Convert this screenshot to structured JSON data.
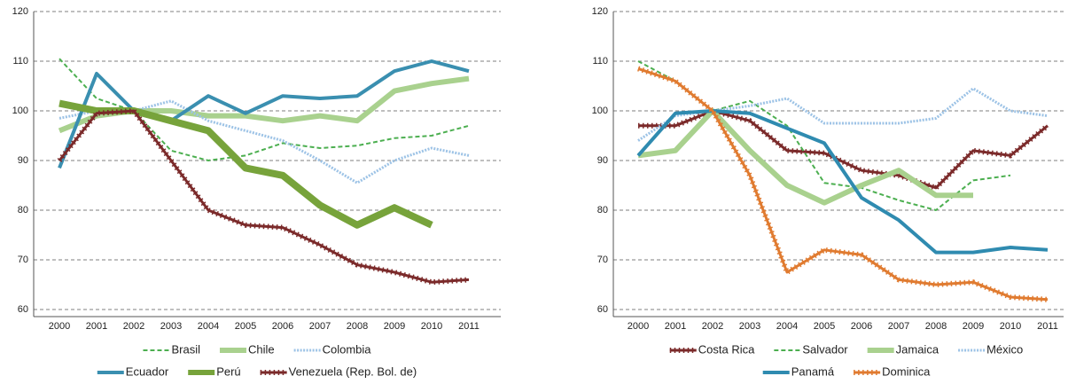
{
  "chart_data": [
    {
      "type": "line",
      "categories": [
        "2000",
        "2001",
        "2002",
        "2003",
        "2004",
        "2005",
        "2006",
        "2007",
        "2008",
        "2009",
        "2010",
        "2011"
      ],
      "ylim": [
        60,
        120
      ],
      "yticks": [
        60,
        70,
        80,
        90,
        100,
        110,
        120
      ],
      "grid": true,
      "series": [
        {
          "name": "Brasil",
          "color": "#4caf50",
          "line_style": "dashed",
          "values": [
            110.5,
            102.5,
            100,
            92,
            90,
            91,
            93.5,
            92.5,
            93,
            94.5,
            95,
            97
          ]
        },
        {
          "name": "Chile",
          "color": "#a9d18e",
          "line_style": "thick",
          "values": [
            96,
            99,
            100,
            100,
            99,
            99,
            98,
            99,
            98,
            104,
            105.5,
            106.5
          ]
        },
        {
          "name": "Colombia",
          "color": "#9dc3e6",
          "line_style": "dotted",
          "values": [
            98.5,
            100,
            100,
            102,
            98,
            96,
            94,
            90,
            85.5,
            90,
            92.5,
            91
          ]
        },
        {
          "name": "Ecuador",
          "color": "#3a8fb0",
          "line_style": "solid",
          "values": [
            88.5,
            107.5,
            100,
            98,
            103,
            99.5,
            103,
            102.5,
            103,
            108,
            110,
            108
          ]
        },
        {
          "name": "Perú",
          "color": "#77a33b",
          "line_style": "heavy",
          "values": [
            101.5,
            100,
            100,
            98,
            96,
            88.5,
            87,
            81,
            77,
            80.5,
            77,
            null
          ]
        },
        {
          "name": "Venezuela (Rep. Bol. de)",
          "color": "#7b2a2a",
          "line_style": "markers",
          "values": [
            90,
            99.5,
            100,
            90,
            80,
            77,
            76.5,
            73,
            69,
            67.5,
            65.5,
            66
          ]
        }
      ]
    },
    {
      "type": "line",
      "categories": [
        "2000",
        "2001",
        "2002",
        "2003",
        "2004",
        "2005",
        "2006",
        "2007",
        "2008",
        "2009",
        "2010",
        "2011"
      ],
      "ylim": [
        60,
        120
      ],
      "yticks": [
        60,
        70,
        80,
        90,
        100,
        110,
        120
      ],
      "grid": true,
      "series": [
        {
          "name": "Costa Rica",
          "color": "#7b2a2a",
          "line_style": "markers",
          "values": [
            97,
            97,
            100,
            98,
            92,
            91.5,
            88,
            87,
            84.5,
            92,
            91,
            97
          ]
        },
        {
          "name": "Salvador",
          "color": "#4caf50",
          "line_style": "dashed",
          "values": [
            110,
            106,
            100,
            102,
            97,
            85.5,
            84.5,
            82,
            80,
            86,
            87,
            null
          ]
        },
        {
          "name": "Jamaica",
          "color": "#a9d18e",
          "line_style": "thick",
          "values": [
            91,
            92,
            100,
            92,
            85,
            81.5,
            85,
            88,
            83,
            83,
            null,
            null
          ]
        },
        {
          "name": "México",
          "color": "#9dc3e6",
          "line_style": "dotted",
          "values": [
            94,
            99,
            100,
            101,
            102.5,
            97.5,
            97.5,
            97.5,
            98.5,
            104.5,
            100,
            99
          ]
        },
        {
          "name": "Panamá",
          "color": "#2f8bb0",
          "line_style": "solid",
          "values": [
            91,
            99.5,
            100,
            99.5,
            96.5,
            93.5,
            82.5,
            78,
            71.5,
            71.5,
            72.5,
            72
          ]
        },
        {
          "name": "Dominica",
          "color": "#e07b30",
          "line_style": "markers",
          "values": [
            108.5,
            106,
            100,
            87,
            67.5,
            72,
            71,
            66,
            65,
            65.5,
            62.5,
            62
          ]
        }
      ]
    }
  ]
}
